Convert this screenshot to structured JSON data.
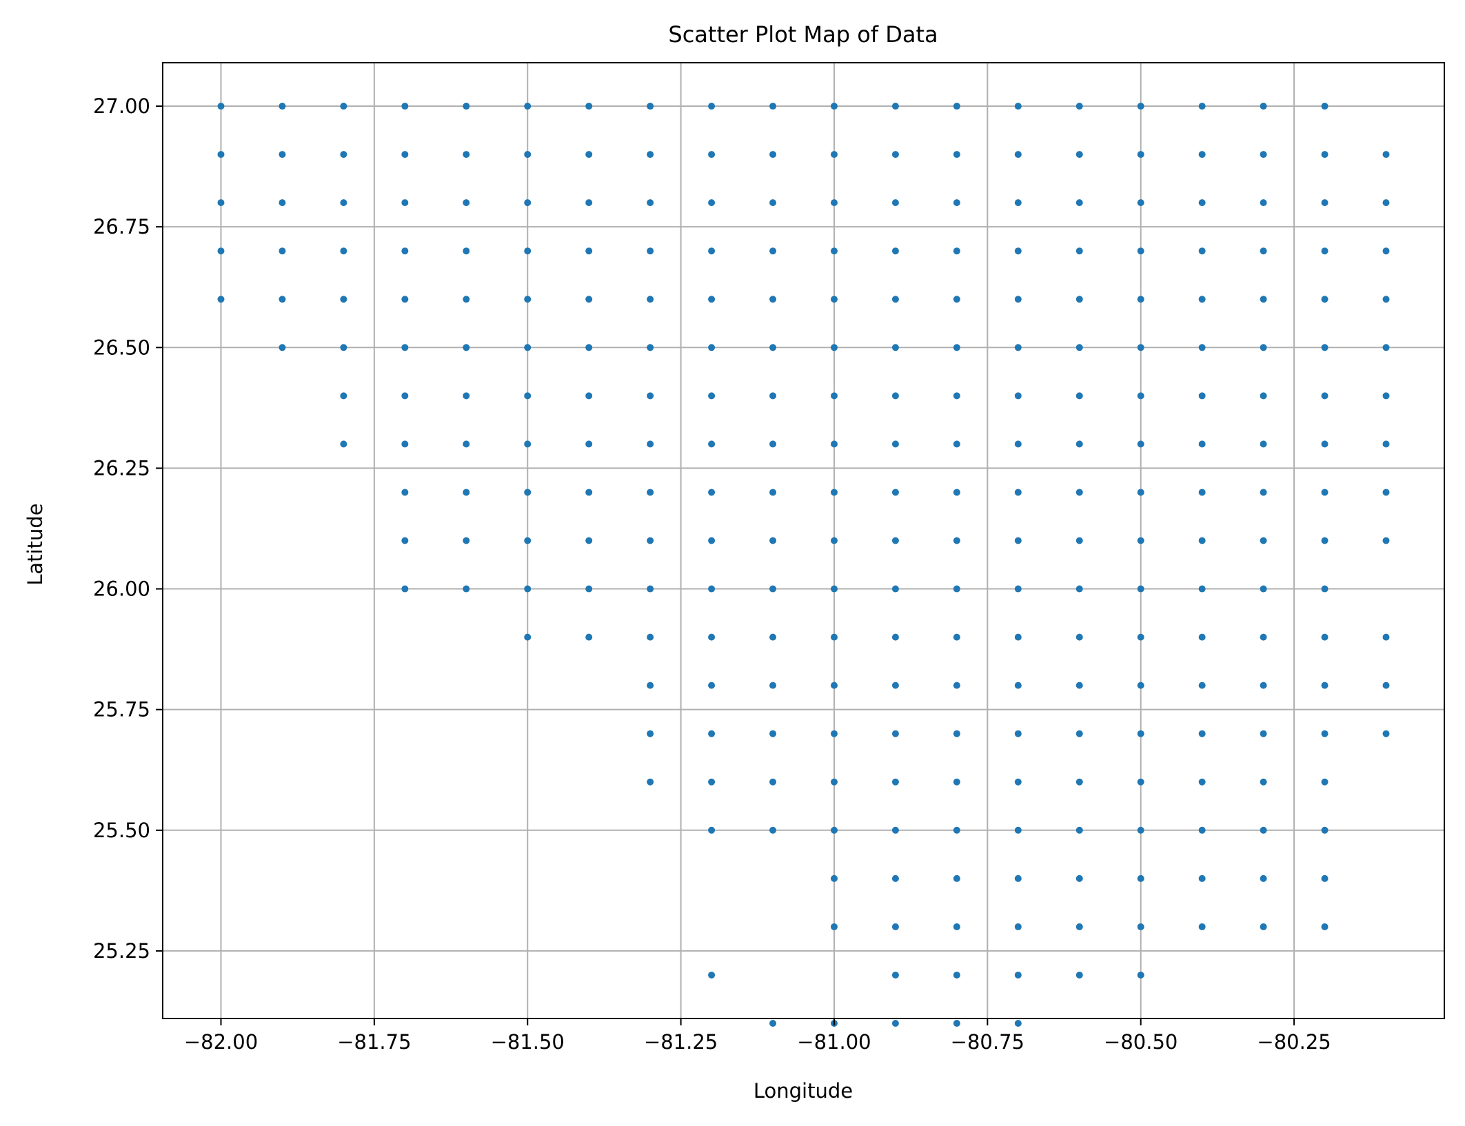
{
  "chart_data": {
    "type": "scatter",
    "title": "Scatter Plot Map of Data",
    "xlabel": "Longitude",
    "ylabel": "Latitude",
    "xlim": [
      -82.095,
      -80.005
    ],
    "ylim": [
      25.11,
      27.09
    ],
    "xticks": [
      -82.0,
      -81.75,
      -81.5,
      -81.25,
      -81.0,
      -80.75,
      -80.5,
      -80.25
    ],
    "xtick_labels": [
      "−82.00",
      "−81.75",
      "−81.50",
      "−81.25",
      "−81.00",
      "−80.75",
      "−80.50",
      "−80.25"
    ],
    "yticks": [
      25.25,
      25.5,
      25.75,
      26.0,
      26.25,
      26.5,
      26.75,
      27.0
    ],
    "ytick_labels": [
      "25.25",
      "25.50",
      "25.75",
      "26.00",
      "26.25",
      "26.50",
      "26.75",
      "27.00"
    ],
    "grid": true,
    "marker_color": "#1f77b4",
    "x_grid_start": -82.0,
    "x_grid_step": 0.1,
    "y_grid_start": 27.0,
    "y_grid_step": -0.1,
    "row_patterns": [
      "1111111111111111111.",
      "11111111111111111111",
      "11111111111111111111",
      "11111111111111111111",
      "11111111111111111111",
      ".1111111111111111111",
      "..111111111111111111",
      "..111111111111111111",
      "...11111111111111111",
      "...11111111111111111",
      "...1111111111111111.",
      ".....111111111111111.",
      ".......1111111111111.",
      ".......1111111111111.",
      ".......111111111111..",
      "........11111111111..",
      "..........111111111..",
      "..........111111111..",
      "........1..11111.....",
      ".........11111......."
    ]
  }
}
